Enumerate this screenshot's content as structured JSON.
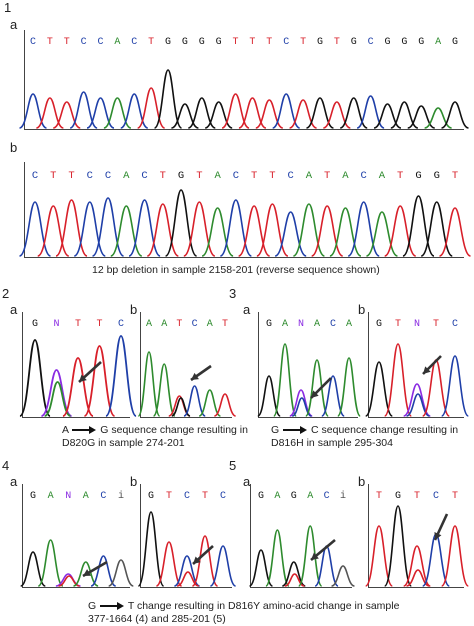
{
  "figure_labels": {
    "n1": "1",
    "n1a": "a",
    "n1b": "b",
    "n2": "2",
    "n2a": "a",
    "n2b": "b",
    "n3": "3",
    "n3a": "a",
    "n3b": "b",
    "n4": "4",
    "n4a": "a",
    "n4b": "b",
    "n5": "5",
    "n5a": "a",
    "n5b": "b"
  },
  "colors": {
    "A": "#2e8b2e",
    "C": "#1f3fa8",
    "G": "#111111",
    "T": "#d8202a",
    "N": "#8a2be2"
  },
  "sequences": {
    "p1a": [
      "C",
      "T",
      "T",
      "C",
      "C",
      "A",
      "C",
      "T",
      "G",
      "G",
      "G",
      "G",
      "T",
      "T",
      "T",
      "C",
      "T",
      "G",
      "T",
      "G",
      "C",
      "G",
      "G",
      "G",
      "A",
      "G"
    ],
    "p1b": [
      "C",
      "T",
      "T",
      "C",
      "C",
      "A",
      "C",
      "T",
      "G",
      "T",
      "A",
      "C",
      "T",
      "T",
      "C",
      "A",
      "T",
      "A",
      "C",
      "A",
      "T",
      "G",
      "G",
      "T"
    ],
    "p2a": [
      "G",
      "N",
      "T",
      "T",
      "C"
    ],
    "p2b": [
      "A",
      "A",
      "T",
      "C",
      "A",
      "T"
    ],
    "p3a": [
      "G",
      "A",
      "N",
      "A",
      "C",
      "A"
    ],
    "p3b": [
      "G",
      "T",
      "N",
      "T",
      "C"
    ],
    "p4a": [
      "G",
      "A",
      "N",
      "A",
      "C",
      "i"
    ],
    "p4b": [
      "G",
      "T",
      "C",
      "T",
      "C"
    ],
    "p5a": [
      "G",
      "A",
      "G",
      "A",
      "C",
      "i"
    ],
    "p5b": [
      "T",
      "G",
      "T",
      "C",
      "T"
    ]
  },
  "captions": {
    "c1": "12 bp deletion in sample 2158-201 (reverse sequence shown)",
    "c2_line1": "A",
    "c2_line1b": "G sequence change resulting in",
    "c2_line2": "D820G in sample 274-201",
    "c3_line1": "G",
    "c3_line1b": "C sequence change resulting in",
    "c3_line2": "D816H in sample 295-304",
    "c4_line1": "G",
    "c4_line1b": "T change resulting in D816Y amino-acid change in sample",
    "c4_line2": "377-1664 (4) and 285-201 (5)"
  }
}
